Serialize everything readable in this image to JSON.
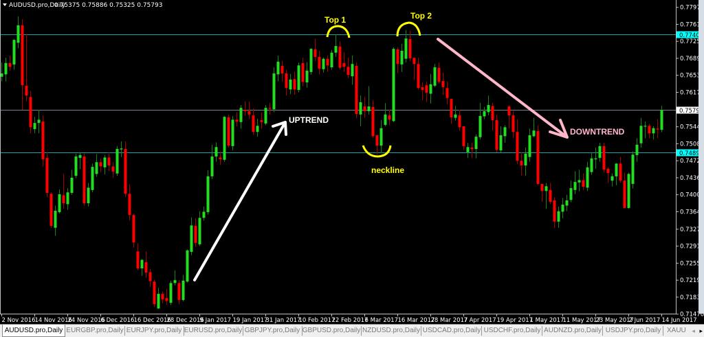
{
  "header": {
    "symbol": "AUDUSD.pro,Daily",
    "ohlc_text": "0.75375 0.75886 0.75325 0.75793"
  },
  "colors": {
    "background": "#000000",
    "bull": "#22dd22",
    "bear": "#ff0000",
    "bull_wick": "#118811",
    "bear_wick": "#aa0000",
    "level_line": "#17a5a8",
    "bid_line": "#7a8590",
    "annotation_yellow": "#ffff00",
    "arrow_pink": "#ffb6c8"
  },
  "chart_data": {
    "type": "candlestick",
    "title": "AUDUSD.pro,Daily",
    "ylim": [
      0.7147,
      0.7797
    ],
    "y_ticks": [
      "0.77970",
      "0.77610",
      "0.77250",
      "0.76890",
      "0.76530",
      "0.76170",
      "0.75440",
      "0.75080",
      "0.74720",
      "0.74360",
      "0.74000",
      "0.73640",
      "0.73270",
      "0.72910",
      "0.72550",
      "0.72190",
      "0.71830",
      "0.71470"
    ],
    "x_ticks": [
      "2 Nov 2016",
      "14 Nov 2016",
      "24 Nov 2016",
      "6 Dec 2016",
      "16 Dec 2016",
      "28 Dec 2016",
      "9 Jan 2017",
      "19 Jan 2017",
      "31 Jan 2017",
      "10 Feb 2017",
      "22 Feb 2017",
      "6 Mar 2017",
      "16 Mar 2017",
      "28 Mar 2017",
      "7 Apr 2017",
      "19 Apr 2017",
      "1 May 2017",
      "11 May 2017",
      "23 May 2017",
      "2 Jun 2017",
      "14 Jun 2017"
    ],
    "x_tick_every_bars": 8,
    "levels": [
      {
        "price": "0.77400",
        "style": "cyan"
      },
      {
        "price": "0.74896",
        "style": "cyan"
      },
      {
        "price": "0.75793",
        "style": "bid"
      }
    ],
    "ohlc": [
      [
        0.765,
        0.768,
        0.764,
        0.7657
      ],
      [
        0.7655,
        0.769,
        0.764,
        0.7679
      ],
      [
        0.7679,
        0.7695,
        0.7662,
        0.7671
      ],
      [
        0.7676,
        0.773,
        0.7665,
        0.7728
      ],
      [
        0.7722,
        0.7778,
        0.771,
        0.7759
      ],
      [
        0.7759,
        0.7772,
        0.758,
        0.7632
      ],
      [
        0.7631,
        0.774,
        0.7598,
        0.761
      ],
      [
        0.7607,
        0.762,
        0.753,
        0.7543
      ],
      [
        0.7539,
        0.7565,
        0.753,
        0.7552
      ],
      [
        0.7552,
        0.758,
        0.753,
        0.7559
      ],
      [
        0.7555,
        0.7568,
        0.746,
        0.7475
      ],
      [
        0.7478,
        0.749,
        0.7395,
        0.7404
      ],
      [
        0.7402,
        0.7405,
        0.733,
        0.7334
      ],
      [
        0.733,
        0.7377,
        0.7313,
        0.7366
      ],
      [
        0.7363,
        0.7411,
        0.736,
        0.7401
      ],
      [
        0.7399,
        0.7444,
        0.737,
        0.7382
      ],
      [
        0.738,
        0.7414,
        0.7368,
        0.7405
      ],
      [
        0.7404,
        0.7453,
        0.74,
        0.7436
      ],
      [
        0.744,
        0.7487,
        0.7435,
        0.7481
      ],
      [
        0.7478,
        0.7489,
        0.7454,
        0.7484
      ],
      [
        0.7481,
        0.7488,
        0.7376,
        0.7382
      ],
      [
        0.7382,
        0.7425,
        0.7375,
        0.7415
      ],
      [
        0.741,
        0.7466,
        0.7405,
        0.7459
      ],
      [
        0.7444,
        0.7486,
        0.7438,
        0.7469
      ],
      [
        0.7469,
        0.7477,
        0.7448,
        0.746
      ],
      [
        0.7458,
        0.7484,
        0.7443,
        0.7479
      ],
      [
        0.7479,
        0.749,
        0.745,
        0.7462
      ],
      [
        0.746,
        0.7469,
        0.7436,
        0.7449
      ],
      [
        0.7445,
        0.7503,
        0.744,
        0.7497
      ],
      [
        0.7496,
        0.7513,
        0.748,
        0.7498
      ],
      [
        0.7497,
        0.7513,
        0.7395,
        0.7402
      ],
      [
        0.7402,
        0.7422,
        0.7345,
        0.7357
      ],
      [
        0.7357,
        0.736,
        0.7288,
        0.7299
      ],
      [
        0.728,
        0.7297,
        0.724,
        0.7244
      ],
      [
        0.7244,
        0.7264,
        0.7228,
        0.7262
      ],
      [
        0.7257,
        0.728,
        0.7224,
        0.7235
      ],
      [
        0.7236,
        0.7243,
        0.7205,
        0.7217
      ],
      [
        0.7216,
        0.722,
        0.7162,
        0.7168
      ],
      [
        0.7159,
        0.7203,
        0.7158,
        0.719
      ],
      [
        0.719,
        0.7195,
        0.717,
        0.7178
      ],
      [
        0.7181,
        0.7201,
        0.7167,
        0.7175
      ],
      [
        0.7171,
        0.7218,
        0.7166,
        0.7213
      ],
      [
        0.7213,
        0.724,
        0.7208,
        0.7219
      ],
      [
        0.7213,
        0.7219,
        0.7168,
        0.7177
      ],
      [
        0.7177,
        0.723,
        0.7174,
        0.7218
      ],
      [
        0.7216,
        0.7284,
        0.7214,
        0.7282
      ],
      [
        0.7279,
        0.7352,
        0.7272,
        0.7335
      ],
      [
        0.7334,
        0.735,
        0.729,
        0.7298
      ],
      [
        0.7295,
        0.7365,
        0.7291,
        0.7351
      ],
      [
        0.7351,
        0.7375,
        0.7345,
        0.7364
      ],
      [
        0.7363,
        0.7452,
        0.7358,
        0.7439
      ],
      [
        0.7439,
        0.7506,
        0.7433,
        0.7481
      ],
      [
        0.7481,
        0.7511,
        0.747,
        0.7501
      ],
      [
        0.7479,
        0.7491,
        0.7463,
        0.7475
      ],
      [
        0.7474,
        0.7567,
        0.747,
        0.7565
      ],
      [
        0.7564,
        0.757,
        0.75,
        0.7504
      ],
      [
        0.7503,
        0.7567,
        0.7494,
        0.7559
      ],
      [
        0.7559,
        0.7575,
        0.7545,
        0.7555
      ],
      [
        0.7554,
        0.759,
        0.754,
        0.7584
      ],
      [
        0.758,
        0.7598,
        0.7567,
        0.7577
      ],
      [
        0.7577,
        0.7598,
        0.756,
        0.757
      ],
      [
        0.7568,
        0.7583,
        0.7527,
        0.7533
      ],
      [
        0.7533,
        0.7561,
        0.7523,
        0.7546
      ],
      [
        0.7558,
        0.7574,
        0.754,
        0.7554
      ],
      [
        0.7551,
        0.759,
        0.7547,
        0.7584
      ],
      [
        0.7584,
        0.7595,
        0.757,
        0.7583
      ],
      [
        0.7581,
        0.767,
        0.7575,
        0.7657
      ],
      [
        0.7655,
        0.7695,
        0.764,
        0.7682
      ],
      [
        0.7673,
        0.7683,
        0.764,
        0.7657
      ],
      [
        0.7657,
        0.7665,
        0.761,
        0.7626
      ],
      [
        0.7623,
        0.7656,
        0.7613,
        0.7644
      ],
      [
        0.7645,
        0.766,
        0.7612,
        0.7623
      ],
      [
        0.7622,
        0.768,
        0.7617,
        0.7674
      ],
      [
        0.7679,
        0.769,
        0.763,
        0.7639
      ],
      [
        0.7638,
        0.7681,
        0.7627,
        0.7663
      ],
      [
        0.766,
        0.7711,
        0.7654,
        0.7709
      ],
      [
        0.7708,
        0.773,
        0.7683,
        0.7692
      ],
      [
        0.7692,
        0.7705,
        0.7655,
        0.7667
      ],
      [
        0.7666,
        0.7691,
        0.7659,
        0.7688
      ],
      [
        0.7688,
        0.7695,
        0.766,
        0.7674
      ],
      [
        0.767,
        0.7707,
        0.7665,
        0.7701
      ],
      [
        0.7701,
        0.774,
        0.7692,
        0.7715
      ],
      [
        0.7714,
        0.7725,
        0.7665,
        0.7669
      ],
      [
        0.7679,
        0.7702,
        0.766,
        0.7671
      ],
      [
        0.7671,
        0.769,
        0.7647,
        0.7654
      ],
      [
        0.7651,
        0.7695,
        0.7633,
        0.7677
      ],
      [
        0.7673,
        0.7681,
        0.7562,
        0.7571
      ],
      [
        0.757,
        0.761,
        0.7545,
        0.7596
      ],
      [
        0.7587,
        0.7607,
        0.7563,
        0.7577
      ],
      [
        0.7577,
        0.763,
        0.757,
        0.7587
      ],
      [
        0.7586,
        0.7601,
        0.752,
        0.7524
      ],
      [
        0.7526,
        0.7526,
        0.7485,
        0.7504
      ],
      [
        0.7504,
        0.7558,
        0.7488,
        0.7541
      ],
      [
        0.7548,
        0.7594,
        0.7545,
        0.757
      ],
      [
        0.7568,
        0.7581,
        0.7547,
        0.7559
      ],
      [
        0.7556,
        0.7712,
        0.7554,
        0.7709
      ],
      [
        0.7708,
        0.7712,
        0.7658,
        0.7677
      ],
      [
        0.7676,
        0.772,
        0.766,
        0.7705
      ],
      [
        0.7688,
        0.7749,
        0.768,
        0.7731
      ],
      [
        0.773,
        0.7747,
        0.7683,
        0.7689
      ],
      [
        0.769,
        0.769,
        0.7643,
        0.7677
      ],
      [
        0.7677,
        0.769,
        0.7623,
        0.7626
      ],
      [
        0.7628,
        0.7638,
        0.76,
        0.7622
      ],
      [
        0.7632,
        0.764,
        0.7596,
        0.7616
      ],
      [
        0.7614,
        0.7656,
        0.7593,
        0.7634
      ],
      [
        0.7631,
        0.7677,
        0.7628,
        0.767
      ],
      [
        0.7669,
        0.768,
        0.7635,
        0.7639
      ],
      [
        0.7641,
        0.7659,
        0.7612,
        0.7628
      ],
      [
        0.7626,
        0.764,
        0.7592,
        0.7605
      ],
      [
        0.7603,
        0.7603,
        0.755,
        0.7564
      ],
      [
        0.7563,
        0.7588,
        0.7557,
        0.757
      ],
      [
        0.7568,
        0.758,
        0.7535,
        0.7543
      ],
      [
        0.7545,
        0.7545,
        0.7495,
        0.7503
      ],
      [
        0.749,
        0.751,
        0.7478,
        0.7501
      ],
      [
        0.75,
        0.751,
        0.7478,
        0.7497
      ],
      [
        0.7497,
        0.7528,
        0.7477,
        0.7523
      ],
      [
        0.7522,
        0.7595,
        0.7517,
        0.7567
      ],
      [
        0.7566,
        0.7586,
        0.756,
        0.7577
      ],
      [
        0.7575,
        0.761,
        0.7568,
        0.759
      ],
      [
        0.7588,
        0.7595,
        0.7536,
        0.7558
      ],
      [
        0.7558,
        0.757,
        0.749,
        0.7495
      ],
      [
        0.7494,
        0.7545,
        0.749,
        0.7526
      ],
      [
        0.7524,
        0.7547,
        0.751,
        0.7543
      ],
      [
        0.7587,
        0.759,
        0.754,
        0.7568
      ],
      [
        0.7568,
        0.7577,
        0.752,
        0.7533
      ],
      [
        0.7533,
        0.756,
        0.7465,
        0.7472
      ],
      [
        0.7472,
        0.749,
        0.744,
        0.7462
      ],
      [
        0.7462,
        0.75,
        0.744,
        0.7487
      ],
      [
        0.748,
        0.754,
        0.747,
        0.7526
      ],
      [
        0.7524,
        0.7563,
        0.7522,
        0.7536
      ],
      [
        0.7535,
        0.7547,
        0.742,
        0.7423
      ],
      [
        0.7423,
        0.7423,
        0.7385,
        0.7408
      ],
      [
        0.7408,
        0.7425,
        0.737,
        0.7418
      ],
      [
        0.741,
        0.7425,
        0.738,
        0.7385
      ],
      [
        0.7388,
        0.7395,
        0.733,
        0.7343
      ],
      [
        0.7343,
        0.7375,
        0.733,
        0.7365
      ],
      [
        0.7364,
        0.7393,
        0.735,
        0.7379
      ],
      [
        0.7377,
        0.74,
        0.7365,
        0.7388
      ],
      [
        0.7389,
        0.743,
        0.7384,
        0.7414
      ],
      [
        0.741,
        0.745,
        0.7401,
        0.7427
      ],
      [
        0.7426,
        0.7453,
        0.7407,
        0.7431
      ],
      [
        0.7431,
        0.7445,
        0.741,
        0.7417
      ],
      [
        0.7415,
        0.747,
        0.7408,
        0.7458
      ],
      [
        0.7448,
        0.749,
        0.7442,
        0.7477
      ],
      [
        0.7475,
        0.75,
        0.7455,
        0.7477
      ],
      [
        0.7478,
        0.751,
        0.747,
        0.7503
      ],
      [
        0.7503,
        0.751,
        0.7447,
        0.7453
      ],
      [
        0.7455,
        0.7458,
        0.7425,
        0.7446
      ],
      [
        0.743,
        0.7445,
        0.7418,
        0.7439
      ],
      [
        0.7439,
        0.7467,
        0.742,
        0.7466
      ],
      [
        0.7466,
        0.748,
        0.7425,
        0.743
      ],
      [
        0.743,
        0.7447,
        0.7372,
        0.7372
      ],
      [
        0.7372,
        0.7447,
        0.737,
        0.7444
      ],
      [
        0.7423,
        0.7492,
        0.7413,
        0.7485
      ],
      [
        0.7484,
        0.752,
        0.747,
        0.7506
      ],
      [
        0.7509,
        0.7563,
        0.75,
        0.7546
      ],
      [
        0.7546,
        0.7555,
        0.752,
        0.7546
      ],
      [
        0.7546,
        0.755,
        0.752,
        0.753
      ],
      [
        0.753,
        0.7545,
        0.7517,
        0.7541
      ],
      [
        0.754,
        0.756,
        0.752,
        0.7538
      ],
      [
        0.75375,
        0.75886,
        0.75325,
        0.75793
      ]
    ],
    "annotations": {
      "top1": "Top 1",
      "top2": "Top 2",
      "neckline": "neckline",
      "uptrend": "UPTREND",
      "downtrend": "DOWNTREND"
    }
  },
  "tabs": [
    {
      "label": "AUDUSD.pro,Daily",
      "active": true
    },
    {
      "label": "EURGBP.pro,Daily"
    },
    {
      "label": "EURJPY.pro,Daily"
    },
    {
      "label": "EURUSD.pro,Daily"
    },
    {
      "label": "GBPJPY.pro,Daily"
    },
    {
      "label": "GBPUSD.pro,Daily"
    },
    {
      "label": "NZDUSD.pro,Daily"
    },
    {
      "label": "USDCAD.pro,Daily"
    },
    {
      "label": "USDCHF.pro,Daily"
    },
    {
      "label": "AUDNZD.pro,Daily"
    },
    {
      "label": "USDJPY.pro,Daily"
    },
    {
      "label": "XAUU"
    }
  ],
  "tab_scroll": {
    "left": "◂",
    "right": "▸"
  }
}
